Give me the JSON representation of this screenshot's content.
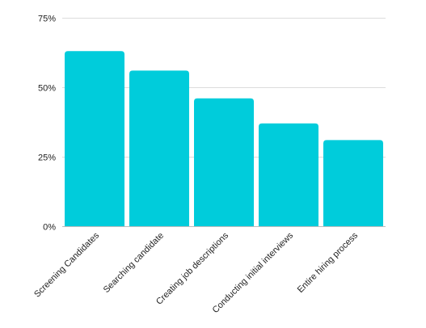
{
  "chart_data": {
    "type": "bar",
    "title": "",
    "xlabel": "",
    "ylabel": "",
    "categories": [
      "Screening Candidates",
      "Searching candidate",
      "Creating job descriptions",
      "Conducting initial interviews",
      "Entire hiring process"
    ],
    "values": [
      63,
      56,
      46,
      37,
      31
    ],
    "unit": "%",
    "ylim": [
      0,
      75
    ],
    "yticks": [
      0,
      25,
      50,
      75
    ],
    "ytick_labels": [
      "0%",
      "25%",
      "50%",
      "75%"
    ],
    "grid": true,
    "legend": "none",
    "bar_color": "#00CCDB",
    "grid_color": "#DCDCDC"
  }
}
